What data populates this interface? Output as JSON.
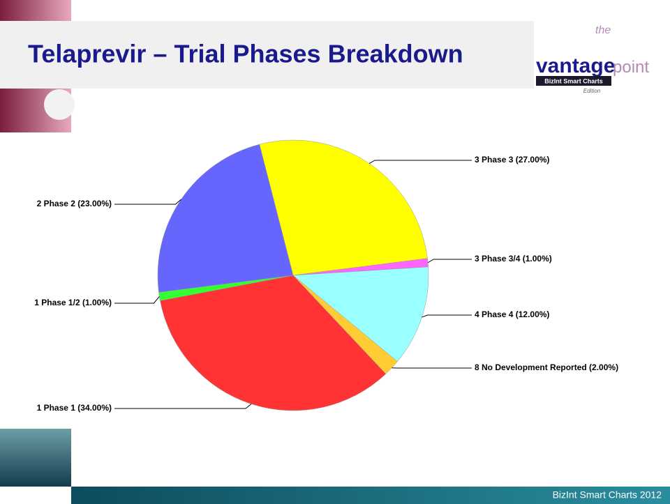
{
  "chart_data": {
    "type": "pie",
    "title": "Telaprevir – Trial Phases Breakdown",
    "categories": [
      "3 Phase 3",
      "3 Phase 3/4",
      "4 Phase 4",
      "8 No Development Reported",
      "1 Phase 1",
      "1 Phase 1/2",
      "2 Phase 2"
    ],
    "values": [
      27,
      1,
      12,
      2,
      34,
      1,
      23
    ],
    "value_labels": [
      "(27.00%)",
      "(1.00%)",
      "(12.00%)",
      "(2.00%)",
      "(34.00%)",
      "(1.00%)",
      "(23.00%)"
    ],
    "colors": [
      "#ffff00",
      "#ff66ff",
      "#99ffff",
      "#ffcc33",
      "#ff3333",
      "#33ff33",
      "#6666ff"
    ]
  },
  "logo": {
    "top": "the",
    "main": "vantage",
    "second": "point",
    "badge": "BizInt Smart Charts",
    "edition": "Edition"
  },
  "footer": "BizInt Smart Charts 2012"
}
